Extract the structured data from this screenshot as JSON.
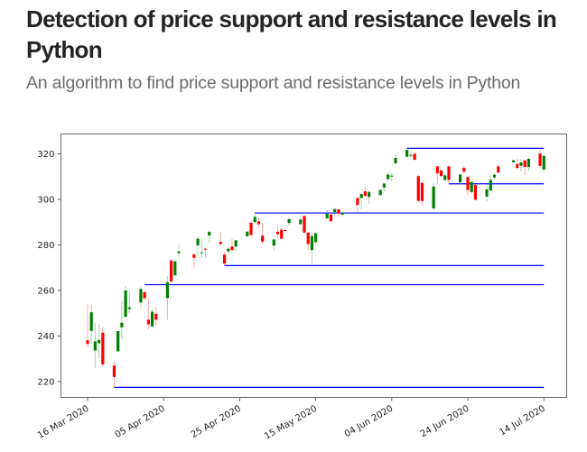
{
  "article": {
    "title": "Detection of price support and resistance levels in Python",
    "subtitle": "An algorithm to find price support and resistance levels in Python"
  },
  "chart_data": {
    "type": "candlestick",
    "title": "",
    "xlabel": "",
    "ylabel": "",
    "xlim": [
      "2020-03-09",
      "2020-07-20"
    ],
    "ylim": [
      213,
      328.7
    ],
    "x_ticks": [
      "2020-03-16",
      "2020-04-05",
      "2020-04-25",
      "2020-05-15",
      "2020-06-04",
      "2020-06-24",
      "2020-07-14"
    ],
    "x_tick_labels": [
      "16 Mar 2020",
      "05 Apr 2020",
      "25 Apr 2020",
      "15 May 2020",
      "04 Jun 2020",
      "24 Jun 2020",
      "14 Jul 2020"
    ],
    "y_ticks": [
      220,
      240,
      260,
      280,
      300,
      320
    ],
    "y_tick_labels": [
      "220",
      "240",
      "260",
      "280",
      "300",
      "320"
    ],
    "grid": false,
    "colors": {
      "up": "#008000",
      "down": "#ff0000",
      "level": "#0000ff"
    },
    "candle_fields": [
      "date",
      "open",
      "high",
      "low",
      "close"
    ],
    "candles": [
      [
        "2020-03-16",
        238.1,
        253.8,
        235.2,
        236.5
      ],
      [
        "2020-03-17",
        242.2,
        253.7,
        236.5,
        250.4
      ],
      [
        "2020-03-18",
        233.6,
        245.8,
        225.9,
        237.6
      ],
      [
        "2020-03-19",
        236.8,
        245.1,
        229.9,
        238.2
      ],
      [
        "2020-03-20",
        241.4,
        243.8,
        226.6,
        227.5
      ],
      [
        "2020-03-23",
        227,
        228.8,
        217.4,
        222
      ],
      [
        "2020-03-24",
        233.2,
        242.1,
        233.2,
        242.1
      ],
      [
        "2020-03-25",
        243.8,
        255.3,
        238.5,
        245.8
      ],
      [
        "2020-03-26",
        248.4,
        261.9,
        248.1,
        260
      ],
      [
        "2020-03-27",
        251.8,
        259.6,
        250,
        252.6
      ],
      [
        "2020-03-30",
        254.7,
        261.6,
        252.4,
        260.6
      ],
      [
        "2020-03-31",
        259.2,
        259.6,
        255.8,
        256.6
      ],
      [
        "2020-04-01",
        247.1,
        256.6,
        242.9,
        245.1
      ],
      [
        "2020-04-02",
        244.2,
        251.7,
        243.8,
        250.6
      ],
      [
        "2020-04-03",
        249.7,
        252.4,
        244.4,
        247.1
      ],
      [
        "2020-04-06",
        256.6,
        266.2,
        247.1,
        263.6
      ],
      [
        "2020-04-07",
        273.1,
        273.5,
        263.6,
        263.9
      ],
      [
        "2020-04-08",
        266.6,
        273.1,
        266.2,
        272.8
      ],
      [
        "2020-04-09",
        276.4,
        280.1,
        274.6,
        277.1
      ],
      [
        "2020-04-13",
        275.9,
        276.1,
        270.1,
        274.3
      ],
      [
        "2020-04-14",
        279.8,
        283.8,
        274.2,
        282.7
      ],
      [
        "2020-04-15",
        276.3,
        282.7,
        274.2,
        276.7
      ],
      [
        "2020-04-16",
        278.3,
        278.8,
        274.2,
        278.0
      ],
      [
        "2020-04-17",
        284.1,
        286.3,
        281,
        285.7
      ],
      [
        "2020-04-20",
        281.3,
        285.7,
        279.8,
        280.4
      ],
      [
        "2020-04-21",
        275.7,
        276.8,
        270.9,
        271.8
      ],
      [
        "2020-04-22",
        277.1,
        278.5,
        276.3,
        278.3
      ],
      [
        "2020-04-23",
        279.3,
        282.7,
        276.8,
        277.7
      ],
      [
        "2020-04-24",
        279.3,
        282.1,
        277.2,
        282
      ],
      [
        "2020-04-27",
        283.8,
        286.2,
        283.4,
        285.8
      ],
      [
        "2020-04-28",
        289.7,
        290.7,
        283.8,
        284.3
      ],
      [
        "2020-04-29",
        290,
        294,
        289.4,
        292.3
      ],
      [
        "2020-04-30",
        290.3,
        292,
        287.4,
        289.1
      ],
      [
        "2020-05-01",
        284.1,
        289.6,
        280.4,
        281.4
      ],
      [
        "2020-05-04",
        279.7,
        282.7,
        277.7,
        282.4
      ],
      [
        "2020-05-05",
        285.7,
        288,
        283,
        284.7
      ],
      [
        "2020-05-06",
        286.7,
        287.3,
        282.4,
        282.7
      ],
      [
        "2020-05-07",
        286.5,
        287.3,
        286,
        286.2
      ],
      [
        "2020-05-08",
        289.6,
        292,
        288.7,
        291.3
      ],
      [
        "2020-05-11",
        289.1,
        292.9,
        288.7,
        291.1
      ],
      [
        "2020-05-12",
        292.7,
        292.9,
        285,
        285.4
      ],
      [
        "2020-05-13",
        285.4,
        285.7,
        277.7,
        280.4
      ],
      [
        "2020-05-14",
        277.7,
        285.4,
        271.9,
        283.8
      ],
      [
        "2020-05-15",
        281.2,
        285.4,
        280.5,
        285.1
      ],
      [
        "2020-05-18",
        291.7,
        295.3,
        291.3,
        293.7
      ],
      [
        "2020-05-19",
        293.3,
        294.2,
        290,
        290.4
      ],
      [
        "2020-05-20",
        294.4,
        296.3,
        293.3,
        295.7
      ],
      [
        "2020-05-21",
        295.6,
        296,
        292.3,
        293.8
      ],
      [
        "2020-05-22",
        293.3,
        294.6,
        292.7,
        294.2
      ],
      [
        "2020-05-26",
        300.6,
        301,
        294,
        297.5
      ],
      [
        "2020-05-27",
        300.6,
        302.8,
        295.7,
        302.3
      ],
      [
        "2020-05-28",
        303.5,
        305.6,
        301,
        301.5
      ],
      [
        "2020-05-29",
        301,
        303.9,
        298,
        303.2
      ],
      [
        "2020-06-01",
        301.9,
        304.5,
        301.5,
        304.1
      ],
      [
        "2020-06-02",
        305.2,
        307.5,
        303.6,
        306.9
      ],
      [
        "2020-06-03",
        308.9,
        311.8,
        307.8,
        310.9
      ],
      [
        "2020-06-04",
        310,
        311.8,
        307.8,
        310.4
      ],
      [
        "2020-06-05",
        315.8,
        319.7,
        315.4,
        318.2
      ],
      [
        "2020-06-08",
        318.7,
        322.4,
        318.4,
        321.7
      ],
      [
        "2020-06-09",
        319.1,
        321.3,
        318.4,
        319.5
      ],
      [
        "2020-06-10",
        320,
        320.7,
        317.1,
        317.4
      ],
      [
        "2020-06-11",
        310.2,
        310.8,
        298.6,
        299.3
      ],
      [
        "2020-06-12",
        307.2,
        307.8,
        297.3,
        299.3
      ],
      [
        "2020-06-15",
        296,
        307.2,
        295.3,
        305.6
      ],
      [
        "2020-06-16",
        314.5,
        314.7,
        306.5,
        311.4
      ],
      [
        "2020-06-17",
        312.7,
        313.1,
        309.8,
        310.2
      ],
      [
        "2020-06-18",
        308.5,
        311.1,
        307.9,
        310.5
      ],
      [
        "2020-06-19",
        314.5,
        314.7,
        306.5,
        308.5
      ],
      [
        "2020-06-22",
        307.5,
        311.2,
        306.9,
        310.9
      ],
      [
        "2020-06-23",
        313.8,
        314.7,
        311.8,
        312.1
      ],
      [
        "2020-06-24",
        309.8,
        310.5,
        301.9,
        304.1
      ],
      [
        "2020-06-25",
        303.2,
        308.1,
        302.5,
        307.6
      ],
      [
        "2020-06-26",
        306.3,
        306.8,
        299.3,
        299.9
      ],
      [
        "2020-06-29",
        301.2,
        305.2,
        298.9,
        304.4
      ],
      [
        "2020-06-30",
        303.9,
        310.5,
        303.2,
        308.5
      ],
      [
        "2020-07-01",
        309.6,
        311.3,
        308.9,
        310.8
      ],
      [
        "2020-07-02",
        314.5,
        315.8,
        311.5,
        311.8
      ],
      [
        "2020-07-06",
        316.3,
        317.5,
        315.9,
        317.1
      ],
      [
        "2020-07-07",
        315.5,
        317.8,
        313.4,
        313.8
      ],
      [
        "2020-07-08",
        314.7,
        317.8,
        312.3,
        316.2
      ],
      [
        "2020-07-09",
        317.1,
        317.4,
        310.8,
        314.2
      ],
      [
        "2020-07-10",
        314.2,
        318.4,
        312.5,
        317.8
      ],
      [
        "2020-07-13",
        320.1,
        322.4,
        313.8,
        314.7
      ],
      [
        "2020-07-14",
        313.1,
        319.5,
        312.1,
        319.1
      ]
    ],
    "levels": [
      {
        "value": 217.4,
        "from": "2020-03-23",
        "to": "2020-07-14"
      },
      {
        "value": 262.5,
        "from": "2020-03-31",
        "to": "2020-07-14"
      },
      {
        "value": 270.9,
        "from": "2020-04-21",
        "to": "2020-07-14"
      },
      {
        "value": 294.0,
        "from": "2020-04-29",
        "to": "2020-07-14"
      },
      {
        "value": 306.8,
        "from": "2020-06-19",
        "to": "2020-07-14"
      },
      {
        "value": 322.4,
        "from": "2020-06-08",
        "to": "2020-07-14"
      }
    ]
  }
}
